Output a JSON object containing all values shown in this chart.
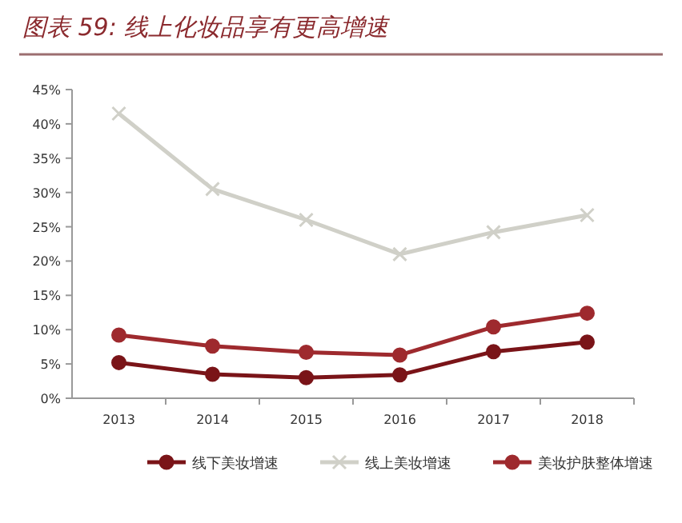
{
  "chart_data": {
    "type": "line",
    "title": "图表 59: 线上化妆品享有更高增速",
    "categories": [
      "2013",
      "2014",
      "2015",
      "2016",
      "2017",
      "2018"
    ],
    "series": [
      {
        "name": "线下美妆增速",
        "color": "#7a1418",
        "values": [
          5.2,
          3.5,
          3.0,
          3.4,
          6.8,
          8.2
        ],
        "marker": "circle"
      },
      {
        "name": "线上美妆增速",
        "color": "#d0d0c8",
        "values": [
          41.5,
          30.5,
          26,
          21,
          24.2,
          26.7
        ],
        "marker": "cross"
      },
      {
        "name": "美妆护肤整体增速",
        "color": "#9e2a2e",
        "values": [
          9.2,
          7.6,
          6.7,
          6.3,
          10.4,
          12.4
        ],
        "marker": "circle"
      }
    ],
    "ylim": [
      0,
      45
    ],
    "yticks": [
      {
        "value": 0,
        "label": "0%"
      },
      {
        "value": 5,
        "label": "5%"
      },
      {
        "value": 10,
        "label": "10%"
      },
      {
        "value": 15,
        "label": "15%"
      },
      {
        "value": 20,
        "label": "20%"
      },
      {
        "value": 25,
        "label": "25%"
      },
      {
        "value": 30,
        "label": "30%"
      },
      {
        "value": 35,
        "label": "35%"
      },
      {
        "value": 40,
        "label": "40%"
      },
      {
        "value": 45,
        "label": "45%"
      }
    ],
    "grid": false,
    "legend": "bottom",
    "line_style": "solid"
  }
}
